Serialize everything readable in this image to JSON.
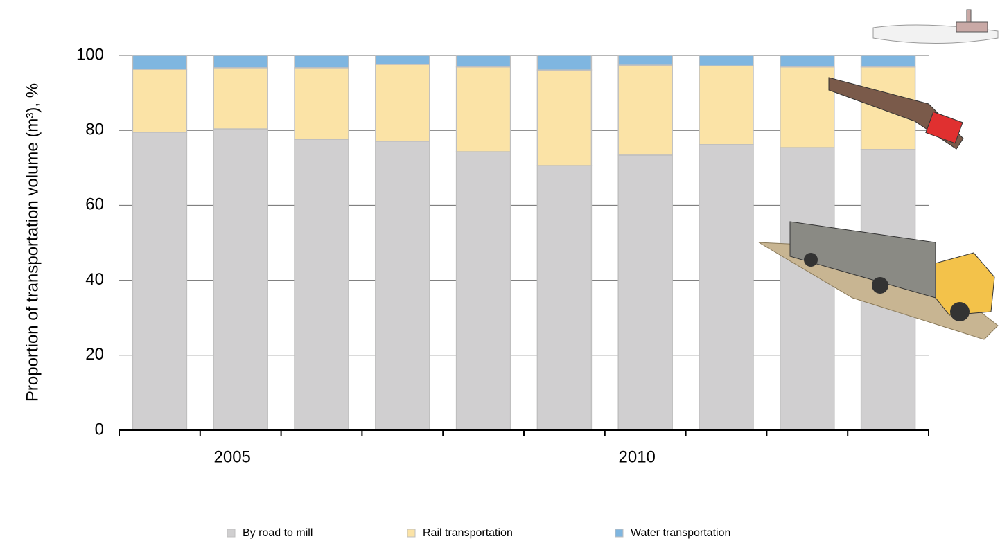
{
  "chart_data": {
    "type": "stacked_bar",
    "y_label": "Proportion  of transportation volume (m³), %",
    "categories": [
      null,
      "2005",
      null,
      null,
      null,
      null,
      "2010",
      null,
      null,
      null
    ],
    "series": [
      {
        "name": "By road to mill",
        "color": "#d0cfd0",
        "values": [
          79.5,
          80.4,
          77.6,
          77.1,
          74.3,
          70.6,
          73.4,
          76.2,
          75.4,
          74.9
        ]
      },
      {
        "name": "Rail transportation",
        "color": "#fbe3a6",
        "values": [
          16.8,
          16.3,
          19.1,
          20.5,
          22.6,
          25.5,
          24.0,
          21.0,
          21.5,
          22.0
        ]
      },
      {
        "name": "Water transportation",
        "color": "#7fb6e0",
        "values": [
          3.7,
          3.3,
          3.3,
          2.4,
          3.1,
          3.9,
          2.6,
          2.8,
          3.1,
          3.1
        ]
      }
    ],
    "ylim": [
      0,
      100
    ],
    "yticks": [
      0,
      20,
      40,
      60,
      80,
      100
    ],
    "grid": true,
    "legend": "bottom"
  }
}
